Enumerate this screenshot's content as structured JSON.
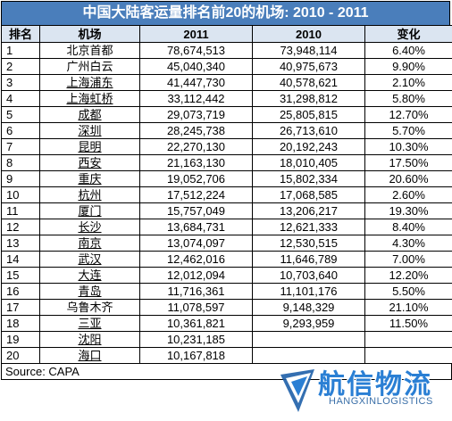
{
  "title": "中国大陆客运量排名前20的机场: 2010 - 2011",
  "headers": [
    "排名",
    "机场",
    "2011",
    "2010",
    "变化"
  ],
  "rows": [
    {
      "rank": "1",
      "city": "北京首都",
      "y2011": "78,674,513",
      "y2010": "73,948,114",
      "change": "6.40%"
    },
    {
      "rank": "2",
      "city": "广州白云",
      "y2011": "45,040,340",
      "y2010": "40,975,673",
      "change": "9.90%"
    },
    {
      "rank": "3",
      "city": "上海浦东",
      "y2011": "41,447,730",
      "y2010": "40,578,621",
      "change": "2.10%"
    },
    {
      "rank": "4",
      "city": "上海虹桥",
      "y2011": "33,112,442",
      "y2010": "31,298,812",
      "change": "5.80%"
    },
    {
      "rank": "5",
      "city": "成都",
      "y2011": "29,073,719",
      "y2010": "25,805,815",
      "change": "12.70%"
    },
    {
      "rank": "6",
      "city": "深圳",
      "y2011": "28,245,738",
      "y2010": "26,713,610",
      "change": "5.70%"
    },
    {
      "rank": "7",
      "city": "昆明",
      "y2011": "22,270,130",
      "y2010": "20,192,243",
      "change": "10.30%"
    },
    {
      "rank": "8",
      "city": "西安",
      "y2011": "21,163,130",
      "y2010": "18,010,405",
      "change": "17.50%"
    },
    {
      "rank": "9",
      "city": "重庆",
      "y2011": "19,052,706",
      "y2010": "15,802,334",
      "change": "20.60%"
    },
    {
      "rank": "10",
      "city": "杭州",
      "y2011": "17,512,224",
      "y2010": "17,068,585",
      "change": "2.60%"
    },
    {
      "rank": "11",
      "city": "厦门",
      "y2011": "15,757,049",
      "y2010": "13,206,217",
      "change": "19.30%"
    },
    {
      "rank": "12",
      "city": "长沙",
      "y2011": "13,684,731",
      "y2010": "12,621,333",
      "change": "8.40%"
    },
    {
      "rank": "13",
      "city": "南京",
      "y2011": "13,074,097",
      "y2010": "12,530,515",
      "change": "4.30%"
    },
    {
      "rank": "14",
      "city": "武汉",
      "y2011": "12,462,016",
      "y2010": "11,646,789",
      "change": "7.00%"
    },
    {
      "rank": "15",
      "city": "大连",
      "y2011": "12,012,094",
      "y2010": "10,703,640",
      "change": "12.20%"
    },
    {
      "rank": "16",
      "city": "青岛",
      "y2011": "11,716,361",
      "y2010": "11,101,176",
      "change": "5.50%"
    },
    {
      "rank": "17",
      "city": "乌鲁木齐",
      "y2011": "11,078,597",
      "y2010": "9,148,329",
      "change": "21.10%"
    },
    {
      "rank": "18",
      "city": "三亚",
      "y2011": "10,361,821",
      "y2010": "9,293,959",
      "change": "11.50%"
    },
    {
      "rank": "19",
      "city": "沈阳",
      "y2011": "10,231,185",
      "y2010": "",
      "change": ""
    },
    {
      "rank": "20",
      "city": "海口",
      "y2011": "10,167,818",
      "y2010": "",
      "change": ""
    }
  ],
  "source": "Source: CAPA",
  "watermark": {
    "logo_text": "航信物流",
    "url": "HANGXINLOGISTICS"
  },
  "colors": {
    "title_bg": "#4a7ebb",
    "header_bg": "#dbe5f1",
    "watermark_blue": "#2a7fd4"
  }
}
